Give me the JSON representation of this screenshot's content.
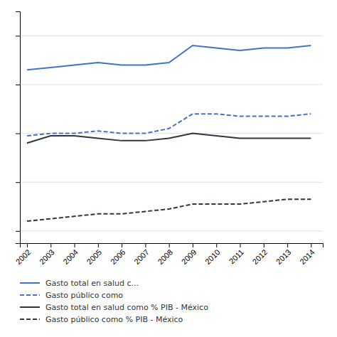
{
  "chart_data": {
    "type": "line",
    "x": [
      2002,
      2003,
      2004,
      2005,
      2006,
      2007,
      2008,
      2009,
      2010,
      2011,
      2012,
      2013,
      2014
    ],
    "xlim": [
      2001.7,
      2014.5
    ],
    "xticks": [
      2002,
      2003,
      2004,
      2005,
      2006,
      2007,
      2008,
      2009,
      2010,
      2011,
      2012,
      2013,
      2014
    ],
    "ylim": [
      1.5,
      11.0
    ],
    "yticks": [
      2,
      4,
      6,
      8,
      10
    ],
    "grid": true,
    "tick_labels": "x",
    "legend": "bottom",
    "series": [
      {
        "name": "Gasto total en salud c...",
        "color": "#4472C4",
        "line_style": "solid",
        "values": [
          8.6,
          8.7,
          8.8,
          8.9,
          8.8,
          8.8,
          8.9,
          9.6,
          9.5,
          9.4,
          9.5,
          9.5,
          9.6
        ]
      },
      {
        "name": "Gasto público como",
        "color": "#4472C4",
        "line_style": "dashed",
        "values": [
          5.9,
          6.0,
          6.0,
          6.1,
          6.0,
          6.0,
          6.2,
          6.8,
          6.8,
          6.7,
          6.7,
          6.7,
          6.8
        ]
      },
      {
        "name": "Gasto total en salud como % PIB - México",
        "color": "#2F3640",
        "line_style": "solid",
        "values": [
          5.6,
          5.9,
          5.9,
          5.8,
          5.7,
          5.7,
          5.8,
          6.0,
          5.9,
          5.8,
          5.8,
          5.8,
          5.8
        ]
      },
      {
        "name": "Gasto público como % PIB - México",
        "color": "#2F3640",
        "line_style": "dashed",
        "values": [
          2.4,
          2.5,
          2.6,
          2.7,
          2.7,
          2.8,
          2.9,
          3.1,
          3.1,
          3.1,
          3.2,
          3.3,
          3.3
        ]
      }
    ]
  }
}
